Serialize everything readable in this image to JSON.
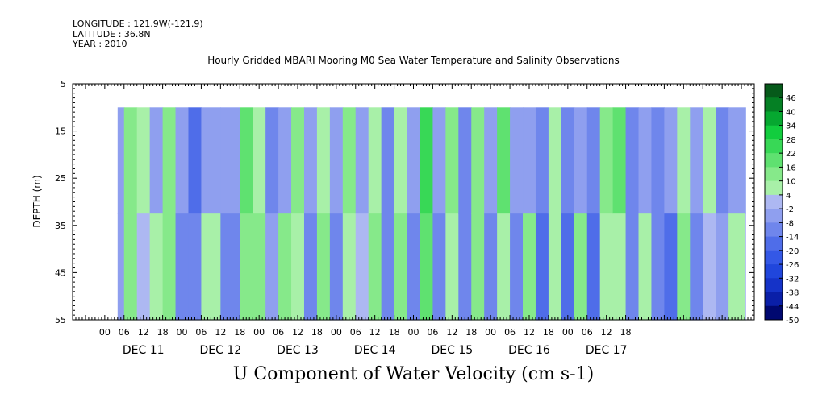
{
  "meta": {
    "longitude": "LONGITUDE : 121.9W(-121.9)",
    "latitude": "LATITUDE : 36.8N",
    "year": "YEAR : 2010"
  },
  "chart_data": {
    "type": "heatmap",
    "title": "Hourly Gridded MBARI Mooring M0 Sea Water Temperature and Salinity Observations",
    "bottom_title": "U Component of Water Velocity (cm s-1)",
    "ylabel": "DEPTH (m)",
    "xlabel": "",
    "y_axis": {
      "range": [
        5,
        55
      ],
      "inverted": true,
      "ticks": [
        5,
        15,
        25,
        35,
        45,
        55
      ]
    },
    "x_axis": {
      "range_hours": [
        -10,
        202
      ],
      "hour_tick_labels": [
        "00",
        "06",
        "12",
        "18",
        "00",
        "06",
        "12",
        "18",
        "00",
        "06",
        "12",
        "18",
        "00",
        "06",
        "12",
        "18",
        "00",
        "06",
        "12",
        "18",
        "00",
        "06",
        "12",
        "18",
        "00",
        "06",
        "12",
        "18"
      ],
      "day_labels": [
        "DEC 11",
        "DEC 12",
        "DEC 13",
        "DEC 14",
        "DEC 15",
        "DEC 16",
        "DEC 17"
      ]
    },
    "data_extent": {
      "depth_top": 10,
      "depth_bottom": 55,
      "start": "DEC 11 04",
      "end": "DEC 17 23"
    },
    "colorbar": {
      "levels": [
        -50,
        -44,
        -38,
        -32,
        -26,
        -20,
        -14,
        -8,
        -2,
        4,
        10,
        16,
        22,
        28,
        34,
        40,
        46
      ],
      "labels": [
        "46",
        "40",
        "34",
        "28",
        "22",
        "16",
        "10",
        "4",
        "-2",
        "-8",
        "-14",
        "-20",
        "-26",
        "-32",
        "-38",
        "-44",
        "-50"
      ]
    },
    "colors": {
      "negative": "#3b5ee8",
      "positive": "#00d440",
      "neutral_neg": "#a9b4f0",
      "neutral_pos": "#a8f0a8"
    },
    "column_profile_velocity_cm_s": [
      {
        "hour": 4,
        "values": [
          -6,
          -6
        ]
      },
      {
        "hour": 6,
        "values": [
          14,
          12
        ]
      },
      {
        "hour": 10,
        "values": [
          8,
          2
        ]
      },
      {
        "hour": 14,
        "values": [
          -4,
          8
        ]
      },
      {
        "hour": 18,
        "values": [
          14,
          12
        ]
      },
      {
        "hour": 22,
        "values": [
          -6,
          -10
        ]
      },
      {
        "hour": 26,
        "values": [
          -20,
          -12
        ]
      },
      {
        "hour": 30,
        "values": [
          -4,
          6
        ]
      },
      {
        "hour": 36,
        "values": [
          -8,
          -10
        ]
      },
      {
        "hour": 42,
        "values": [
          16,
          10
        ]
      },
      {
        "hour": 46,
        "values": [
          8,
          14
        ]
      },
      {
        "hour": 50,
        "values": [
          -10,
          -4
        ]
      },
      {
        "hour": 54,
        "values": [
          -6,
          10
        ]
      },
      {
        "hour": 58,
        "values": [
          12,
          6
        ]
      },
      {
        "hour": 62,
        "values": [
          -8,
          -12
        ]
      },
      {
        "hour": 66,
        "values": [
          8,
          14
        ]
      },
      {
        "hour": 70,
        "values": [
          -6,
          -10
        ]
      },
      {
        "hour": 74,
        "values": [
          10,
          4
        ]
      },
      {
        "hour": 78,
        "values": [
          -8,
          -2
        ]
      },
      {
        "hour": 82,
        "values": [
          6,
          14
        ]
      },
      {
        "hour": 86,
        "values": [
          -12,
          -10
        ]
      },
      {
        "hour": 90,
        "values": [
          8,
          10
        ]
      },
      {
        "hour": 94,
        "values": [
          -4,
          -12
        ]
      },
      {
        "hour": 98,
        "values": [
          22,
          20
        ]
      },
      {
        "hour": 102,
        "values": [
          -8,
          -10
        ]
      },
      {
        "hour": 106,
        "values": [
          10,
          8
        ]
      },
      {
        "hour": 110,
        "values": [
          -14,
          -10
        ]
      },
      {
        "hour": 114,
        "values": [
          10,
          12
        ]
      },
      {
        "hour": 118,
        "values": [
          -8,
          -14
        ]
      },
      {
        "hour": 122,
        "values": [
          20,
          6
        ]
      },
      {
        "hour": 126,
        "values": [
          -8,
          -14
        ]
      },
      {
        "hour": 130,
        "values": [
          -4,
          10
        ]
      },
      {
        "hour": 134,
        "values": [
          -10,
          -16
        ]
      },
      {
        "hour": 138,
        "values": [
          8,
          4
        ]
      },
      {
        "hour": 142,
        "values": [
          -10,
          -20
        ]
      },
      {
        "hour": 146,
        "values": [
          -4,
          10
        ]
      },
      {
        "hour": 150,
        "values": [
          -14,
          -18
        ]
      },
      {
        "hour": 154,
        "values": [
          12,
          8
        ]
      },
      {
        "hour": 158,
        "values": [
          16,
          6
        ]
      },
      {
        "hour": 162,
        "values": [
          -10,
          -14
        ]
      },
      {
        "hour": 166,
        "values": [
          -4,
          8
        ]
      },
      {
        "hour": 170,
        "values": [
          -12,
          -10
        ]
      },
      {
        "hour": 174,
        "values": [
          -8,
          -18
        ]
      },
      {
        "hour": 178,
        "values": [
          4,
          12
        ]
      },
      {
        "hour": 182,
        "values": [
          -6,
          -12
        ]
      },
      {
        "hour": 186,
        "values": [
          8,
          2
        ]
      },
      {
        "hour": 190,
        "values": [
          -10,
          -8
        ]
      },
      {
        "hour": 194,
        "values": [
          -6,
          4
        ]
      },
      {
        "hour": 199,
        "values": [
          -12,
          -6
        ]
      }
    ]
  }
}
